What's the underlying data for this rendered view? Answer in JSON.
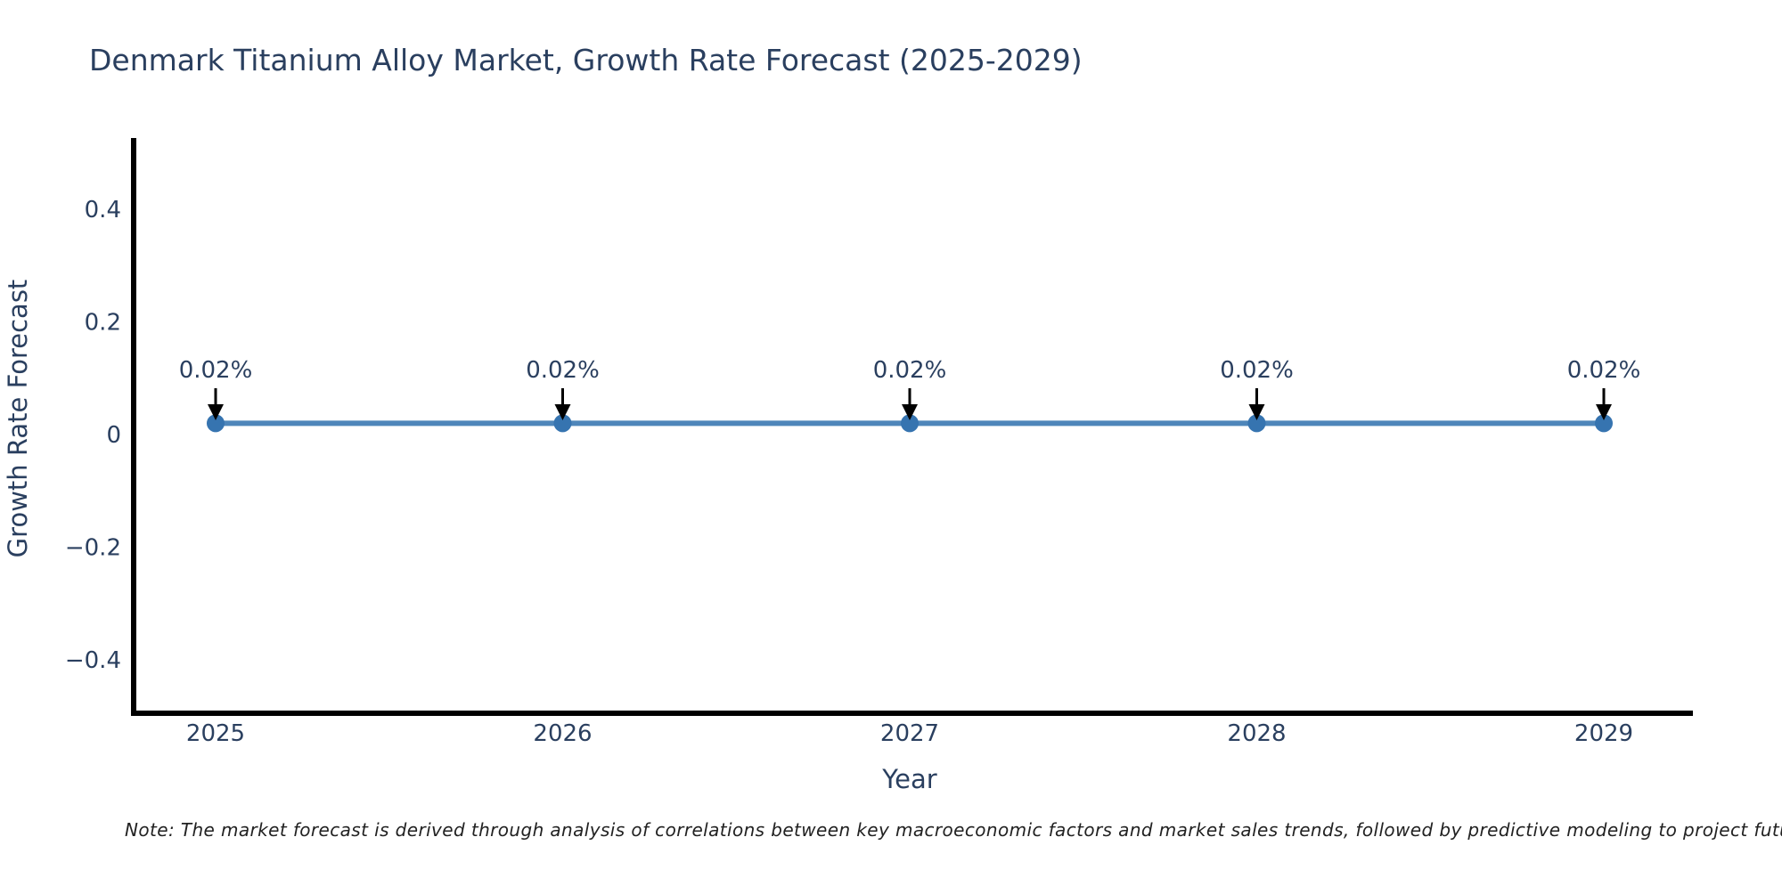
{
  "chart_data": {
    "type": "line",
    "title": "Denmark Titanium Alloy Market, Growth Rate Forecast (2025-2029)",
    "xlabel": "Year",
    "ylabel": "Growth Rate Forecast",
    "x": [
      2025,
      2026,
      2027,
      2028,
      2029
    ],
    "x_tick_labels": [
      "2025",
      "2026",
      "2027",
      "2028",
      "2029"
    ],
    "series": [
      {
        "name": "Growth Rate Forecast",
        "values": [
          0.02,
          0.02,
          0.02,
          0.02,
          0.02
        ]
      }
    ],
    "point_labels": [
      "0.02%",
      "0.02%",
      "0.02%",
      "0.02%",
      "0.02%"
    ],
    "yticks": [
      0.4,
      0.2,
      0,
      -0.2,
      -0.4
    ],
    "ytick_labels": [
      "0.4",
      "0.2",
      "0",
      "−0.2",
      "−0.4"
    ],
    "ylim": [
      -0.49,
      0.52
    ],
    "grid": false,
    "legend": "none",
    "colors": {
      "line": "#4e86ba",
      "marker": "#3674b0",
      "axis": "#000000",
      "text": "#2a3f5f",
      "note_text": "#222222",
      "background": "#ffffff"
    },
    "note": "Note: The market forecast is derived through analysis of correlations between key macroeconomic factors and market sales trends, followed by predictive modeling to project future sa"
  }
}
